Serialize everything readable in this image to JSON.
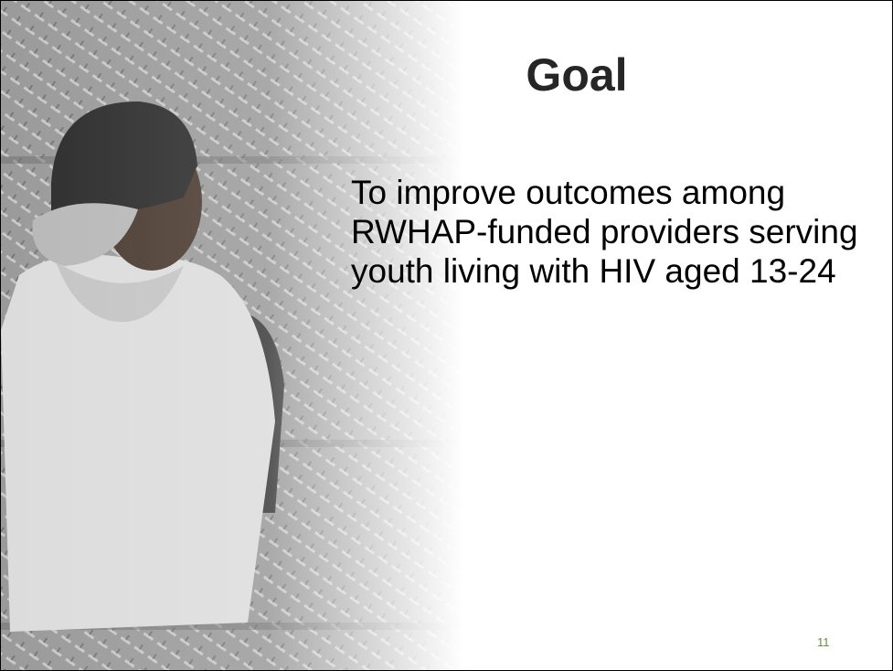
{
  "slide": {
    "title": "Goal",
    "body": "To improve outcomes among RWHAP-funded providers serving youth living with HIV aged 13-24",
    "page_number": 11
  }
}
